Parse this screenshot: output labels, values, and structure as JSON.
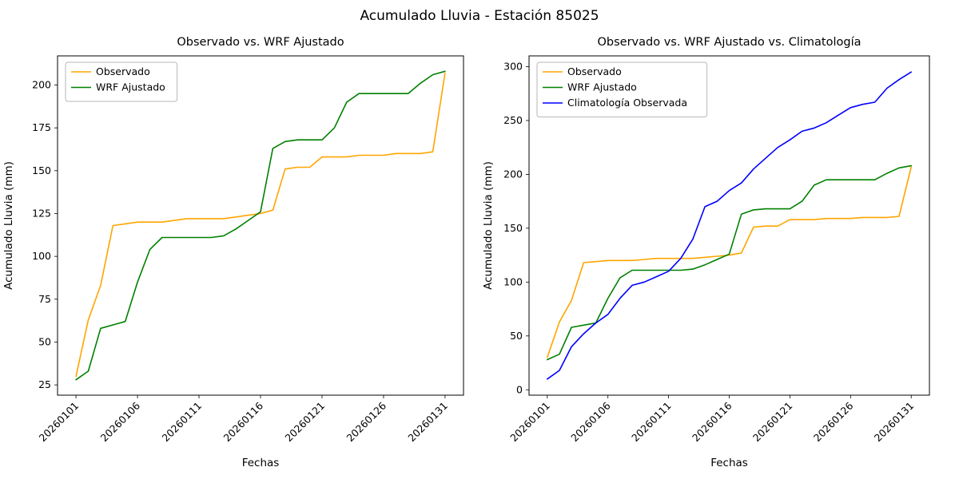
{
  "figure": {
    "title": "Acumulado Lluvia - Estación 85025"
  },
  "chart_data": [
    {
      "type": "line",
      "title": "Observado vs. WRF Ajustado",
      "xlabel": "Fechas",
      "ylabel": "Acumulado Lluvia (mm)",
      "grid": false,
      "legend_position": "upper-left",
      "xlim": [
        -0.5,
        32.5
      ],
      "ylim": [
        19,
        217
      ],
      "y_ticks": [
        25,
        50,
        75,
        100,
        125,
        150,
        175,
        200
      ],
      "x_tick_positions": [
        1,
        6,
        11,
        16,
        21,
        26,
        31
      ],
      "x_tick_labels": [
        "20260101",
        "20260106",
        "20260111",
        "20260116",
        "20260121",
        "20260126",
        "20260131"
      ],
      "series": [
        {
          "name": "Observado",
          "color": "#ffa500",
          "values": [
            30,
            63,
            83,
            118,
            119,
            120,
            120,
            120,
            121,
            122,
            122,
            122,
            122,
            123,
            124,
            125,
            127,
            151,
            152,
            152,
            158,
            158,
            158,
            159,
            159,
            159,
            160,
            160,
            160,
            161,
            207
          ]
        },
        {
          "name": "WRF Ajustado",
          "color": "#008000",
          "values": [
            28,
            33,
            58,
            60,
            62,
            85,
            104,
            111,
            111,
            111,
            111,
            111,
            112,
            116,
            121,
            126,
            163,
            167,
            168,
            168,
            168,
            175,
            190,
            195,
            195,
            195,
            195,
            195,
            201,
            206,
            208
          ]
        }
      ]
    },
    {
      "type": "line",
      "title": "Observado vs. WRF Ajustado vs. Climatología",
      "xlabel": "Fechas",
      "ylabel": "Acumulado Lluvia (mm)",
      "grid": false,
      "legend_position": "upper-left",
      "xlim": [
        -0.5,
        32.5
      ],
      "ylim": [
        -5,
        310
      ],
      "y_ticks": [
        0,
        50,
        100,
        150,
        200,
        250,
        300
      ],
      "x_tick_positions": [
        1,
        6,
        11,
        16,
        21,
        26,
        31
      ],
      "x_tick_labels": [
        "20260101",
        "20260106",
        "20260111",
        "20260116",
        "20260121",
        "20260126",
        "20260131"
      ],
      "series": [
        {
          "name": "Observado",
          "color": "#ffa500",
          "values": [
            30,
            63,
            83,
            118,
            119,
            120,
            120,
            120,
            121,
            122,
            122,
            122,
            122,
            123,
            124,
            125,
            127,
            151,
            152,
            152,
            158,
            158,
            158,
            159,
            159,
            159,
            160,
            160,
            160,
            161,
            207
          ]
        },
        {
          "name": "WRF Ajustado",
          "color": "#008000",
          "values": [
            28,
            33,
            58,
            60,
            62,
            85,
            104,
            111,
            111,
            111,
            111,
            111,
            112,
            116,
            121,
            126,
            163,
            167,
            168,
            168,
            168,
            175,
            190,
            195,
            195,
            195,
            195,
            195,
            201,
            206,
            208
          ]
        },
        {
          "name": "Climatología Observada",
          "color": "#0000ff",
          "values": [
            10,
            18,
            40,
            52,
            62,
            70,
            85,
            97,
            100,
            105,
            110,
            122,
            140,
            170,
            175,
            185,
            192,
            205,
            215,
            225,
            232,
            240,
            243,
            248,
            255,
            262,
            265,
            267,
            280,
            288,
            295
          ]
        }
      ]
    }
  ]
}
